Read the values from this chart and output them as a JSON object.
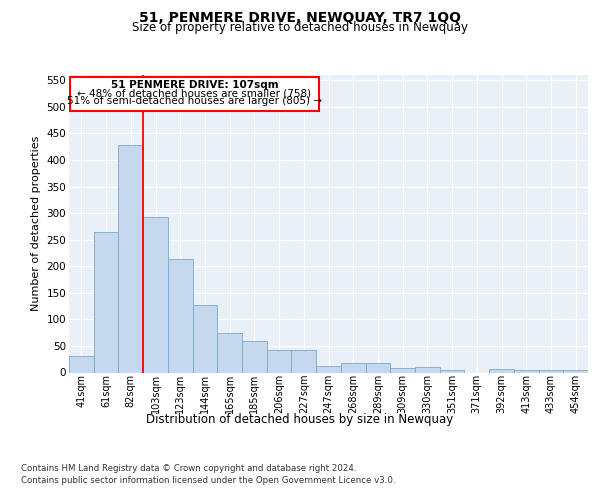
{
  "title": "51, PENMERE DRIVE, NEWQUAY, TR7 1QQ",
  "subtitle": "Size of property relative to detached houses in Newquay",
  "xlabel": "Distribution of detached houses by size in Newquay",
  "ylabel": "Number of detached properties",
  "categories": [
    "41sqm",
    "61sqm",
    "82sqm",
    "103sqm",
    "123sqm",
    "144sqm",
    "165sqm",
    "185sqm",
    "206sqm",
    "227sqm",
    "247sqm",
    "268sqm",
    "289sqm",
    "309sqm",
    "330sqm",
    "351sqm",
    "371sqm",
    "392sqm",
    "413sqm",
    "433sqm",
    "454sqm"
  ],
  "values": [
    32,
    265,
    428,
    293,
    214,
    128,
    75,
    60,
    42,
    42,
    13,
    18,
    18,
    9,
    10,
    4,
    0,
    6,
    5,
    4,
    5
  ],
  "bar_color": "#c5d8ed",
  "bar_edge_color": "#7aa8cc",
  "annotation_title": "51 PENMERE DRIVE: 107sqm",
  "annotation_line1": "← 48% of detached houses are smaller (758)",
  "annotation_line2": "51% of semi-detached houses are larger (805) →",
  "ylim": [
    0,
    560
  ],
  "yticks": [
    0,
    50,
    100,
    150,
    200,
    250,
    300,
    350,
    400,
    450,
    500,
    550
  ],
  "bg_color": "#eaf0f8",
  "footer1": "Contains HM Land Registry data © Crown copyright and database right 2024.",
  "footer2": "Contains public sector information licensed under the Open Government Licence v3.0."
}
